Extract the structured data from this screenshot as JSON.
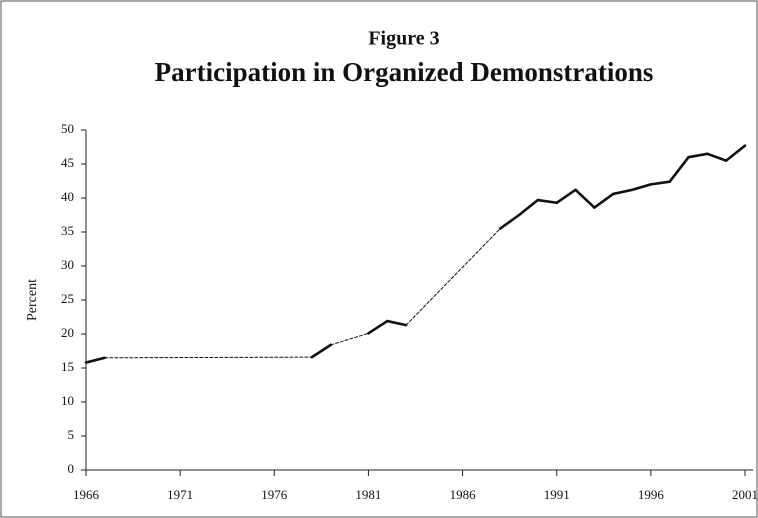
{
  "chart_data": {
    "type": "line",
    "title": "Figure 3",
    "subtitle": "Participation in Organized Demonstrations",
    "y_label": "Percent",
    "x": [
      1966,
      1967,
      1978,
      1979,
      1981,
      1982,
      1983,
      1988,
      1989,
      1990,
      1991,
      1992,
      1993,
      1994,
      1995,
      1996,
      1997,
      1998,
      1999,
      2000,
      2001
    ],
    "series": [
      {
        "name": "Participation",
        "color": "#111111",
        "values": [
          15.8,
          16.5,
          16.6,
          18.4,
          20.1,
          21.9,
          21.3,
          35.5,
          37.5,
          39.7,
          39.3,
          41.2,
          38.6,
          40.6,
          41.2,
          42.0,
          42.4,
          46.0,
          46.5,
          45.5,
          47.7
        ]
      }
    ],
    "xlim": [
      1966,
      2001
    ],
    "xticks": [
      1966,
      1971,
      1976,
      1981,
      1986,
      1991,
      1996,
      2001
    ],
    "ylim": [
      0,
      50
    ],
    "yticks": [
      0,
      5,
      10,
      15,
      20,
      25,
      30,
      35,
      40,
      45,
      50
    ],
    "grid": false
  }
}
